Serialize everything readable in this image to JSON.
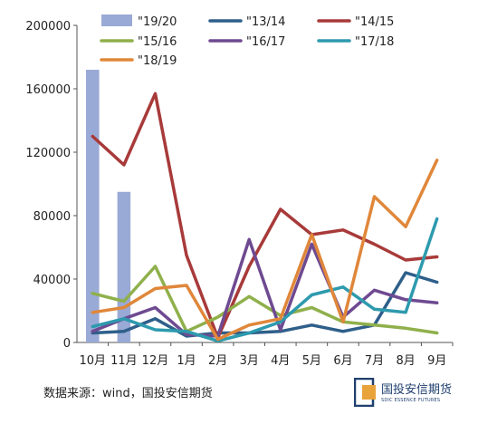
{
  "chart_data": {
    "type": "line",
    "categories": [
      "10月",
      "11月",
      "12月",
      "1月",
      "2月",
      "3月",
      "4月",
      "5月",
      "6月",
      "7月",
      "8月",
      "9月"
    ],
    "ylim": [
      0,
      200000
    ],
    "yticks": [
      0,
      40000,
      80000,
      120000,
      160000,
      200000
    ],
    "grid": false,
    "legend_position": "top",
    "bar_series": {
      "name": "\"19/20",
      "color": "#9aaad6",
      "values": [
        172000,
        95000,
        null,
        null,
        null,
        null,
        null,
        null,
        null,
        null,
        null,
        null
      ]
    },
    "series": [
      {
        "name": "\"13/14",
        "color": "#2e5f8a",
        "values": [
          6000,
          7000,
          15000,
          4000,
          6000,
          6000,
          7000,
          11000,
          7000,
          11000,
          44000,
          38000
        ]
      },
      {
        "name": "\"14/15",
        "color": "#a83a3a",
        "values": [
          130000,
          112000,
          157000,
          55000,
          3000,
          48000,
          84000,
          68000,
          71000,
          62000,
          52000,
          54000
        ]
      },
      {
        "name": "\"15/16",
        "color": "#8fb04b",
        "values": [
          31000,
          26000,
          48000,
          7000,
          16000,
          29000,
          17000,
          22000,
          13000,
          11000,
          9000,
          6000
        ]
      },
      {
        "name": "\"16/17",
        "color": "#6e4a91",
        "values": [
          7000,
          15000,
          22000,
          5000,
          4000,
          65000,
          8000,
          62000,
          16000,
          33000,
          27000,
          25000
        ]
      },
      {
        "name": "\"17/18",
        "color": "#2e9aae",
        "values": [
          10000,
          15000,
          8000,
          7000,
          1000,
          6000,
          13000,
          30000,
          35000,
          21000,
          19000,
          78000
        ]
      },
      {
        "name": "\"18/19",
        "color": "#e0873a",
        "values": [
          19000,
          22000,
          34000,
          36000,
          2000,
          11000,
          15000,
          68000,
          13000,
          92000,
          73000,
          115000
        ]
      }
    ]
  },
  "footer": {
    "source": "数据来源：wind，国投安信期货",
    "logo_cn": "国投安信期货",
    "logo_en": "SDIC ESSENCE FUTURES"
  }
}
